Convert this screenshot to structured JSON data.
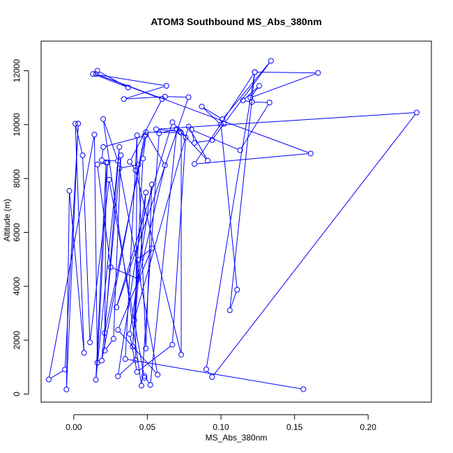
{
  "chart_data": {
    "type": "line",
    "title": "ATOM3 Southbound MS_Abs_380nm",
    "xlabel": "MS_Abs_380nm",
    "ylabel": "Altitude (m)",
    "xlim": [
      -0.0222,
      0.243
    ],
    "ylim": [
      -300,
      13100
    ],
    "x_ticks": [
      0.0,
      0.05,
      0.1,
      0.15,
      0.2
    ],
    "x_tick_labels": [
      "0.00",
      "0.05",
      "0.10",
      "0.15",
      "0.20"
    ],
    "y_ticks": [
      0,
      2000,
      4000,
      6000,
      8000,
      10000,
      12000
    ],
    "y_tick_labels": [
      "0",
      "2000",
      "4000",
      "6000",
      "8000",
      "10000",
      "12000"
    ],
    "grid": false,
    "markers": "open-circle",
    "color": "#0000ff",
    "series": [
      {
        "points": [
          [
            0.016,
            12000
          ],
          [
            0.037,
            11380
          ],
          [
            0.013,
            11880
          ],
          [
            0.063,
            11440
          ],
          [
            0.034,
            10950
          ],
          [
            0.062,
            11040
          ],
          [
            0.078,
            11020
          ],
          [
            0.029,
            3220
          ],
          [
            0.067,
            10090
          ],
          [
            0.091,
            8660
          ],
          [
            0.078,
            9930
          ],
          [
            0.041,
            2740
          ],
          [
            0.047,
            8740
          ],
          [
            0.049,
            9620
          ],
          [
            0.021,
            2260
          ],
          [
            0.031,
            9170
          ],
          [
            0.015,
            530
          ],
          [
            0.022,
            8600
          ],
          [
            0.021,
            1610
          ],
          [
            0.027,
            2050
          ],
          [
            0.032,
            8860
          ],
          [
            0.019,
            1240
          ],
          [
            0.048,
            9580
          ],
          [
            0.02,
            9170
          ],
          [
            0.019,
            8680
          ],
          [
            0.03,
            8650
          ],
          [
            0.02,
            10210
          ],
          [
            0.046,
            310
          ],
          [
            0.058,
            9680
          ],
          [
            0.07,
            9840
          ],
          [
            0.052,
            340
          ],
          [
            0.048,
            670
          ],
          [
            0.048,
            600
          ],
          [
            0.024,
            7960
          ],
          [
            0.011,
            1920
          ],
          [
            0.006,
            8860
          ],
          [
            0.001,
            10030
          ],
          [
            0.007,
            1530
          ],
          [
            -0.003,
            7540
          ],
          [
            -0.005,
            170
          ],
          [
            0.003,
            10040
          ],
          [
            -0.006,
            910
          ],
          [
            -0.017,
            540
          ],
          [
            0.014,
            9630
          ],
          [
            0.016,
            1160
          ],
          [
            0.023,
            8590
          ],
          [
            0.016,
            8520
          ],
          [
            0.025,
            4710
          ],
          [
            0.044,
            4270
          ],
          [
            0.062,
            8490
          ],
          [
            0.049,
            9720
          ],
          [
            0.073,
            9700
          ],
          [
            0.073,
            1460
          ],
          [
            0.042,
            8300
          ],
          [
            0.038,
            8620
          ],
          [
            0.06,
            10950
          ],
          [
            0.015,
            11880
          ],
          [
            0.161,
            8930
          ],
          [
            0.082,
            8540
          ],
          [
            0.123,
            11950
          ],
          [
            0.166,
            11920
          ],
          [
            0.12,
            11000
          ],
          [
            0.126,
            11440
          ],
          [
            0.115,
            10900
          ],
          [
            0.121,
            10840
          ],
          [
            0.133,
            10820
          ],
          [
            0.113,
            9050
          ],
          [
            0.08,
            9810
          ],
          [
            0.082,
            9320
          ],
          [
            0.094,
            9430
          ],
          [
            0.102,
            10030
          ],
          [
            0.134,
            12370
          ],
          [
            0.101,
            10200
          ],
          [
            0.087,
            10670
          ],
          [
            0.1,
            10000
          ],
          [
            0.111,
            3870
          ],
          [
            0.106,
            3110
          ],
          [
            0.123,
            11950
          ],
          [
            0.09,
            920
          ],
          [
            0.094,
            630
          ],
          [
            0.233,
            10450
          ],
          [
            0.056,
            9830
          ],
          [
            0.072,
            9740
          ],
          [
            0.076,
            9530
          ],
          [
            0.067,
            1830
          ],
          [
            0.043,
            820
          ],
          [
            0.038,
            2230
          ],
          [
            0.053,
            7780
          ],
          [
            0.049,
            1690
          ],
          [
            0.044,
            8520
          ],
          [
            0.031,
            8380
          ],
          [
            0.057,
            720
          ],
          [
            0.03,
            2380
          ],
          [
            0.053,
            5410
          ],
          [
            0.044,
            4990
          ],
          [
            0.04,
            1760
          ],
          [
            0.049,
            7480
          ],
          [
            0.03,
            660
          ],
          [
            0.042,
            1260
          ],
          [
            0.043,
            9600
          ],
          [
            0.035,
            1300
          ],
          [
            0.156,
            180
          ]
        ]
      }
    ]
  }
}
